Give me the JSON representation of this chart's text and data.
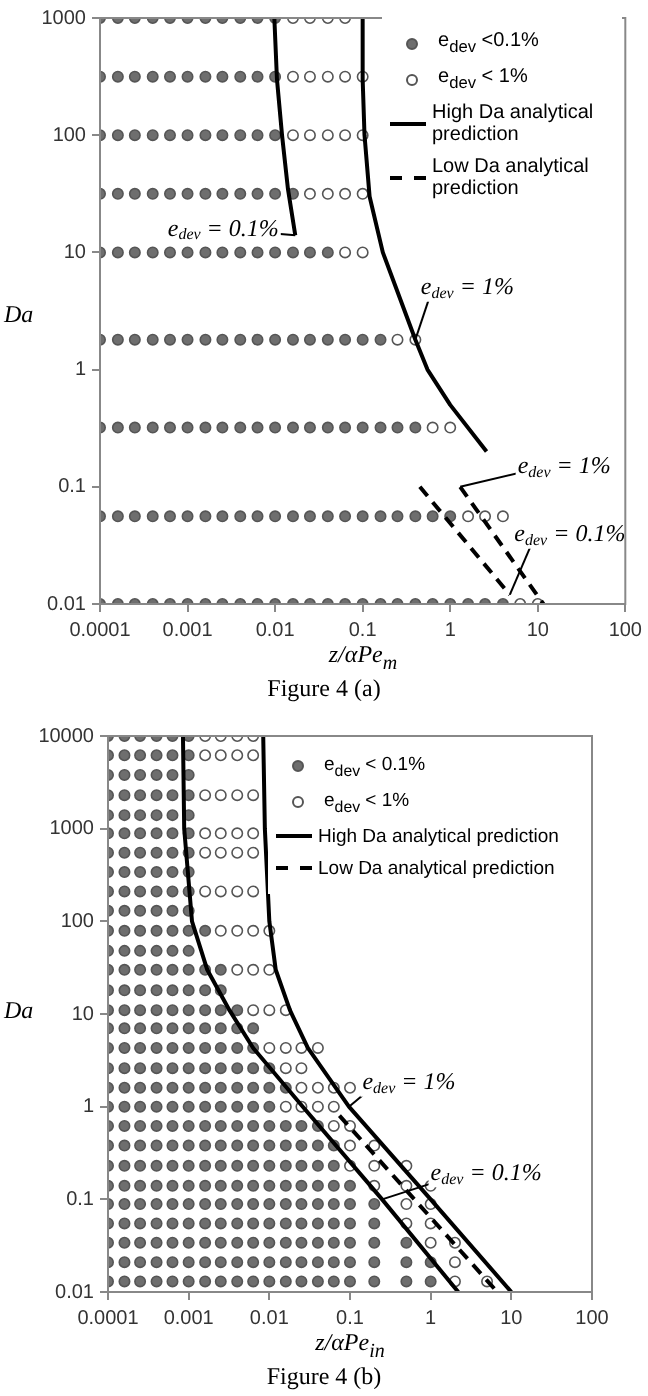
{
  "chart_data": [
    {
      "type": "scatter",
      "log": "xy",
      "grid": false,
      "legend": "top right",
      "xlabel": "z/αPe$_{m}$",
      "ylabel": "Da",
      "xlim": [
        0.0001,
        100
      ],
      "ylim": [
        0.01,
        1000
      ],
      "xticks": [
        0.0001,
        0.001,
        0.01,
        0.1,
        1,
        10,
        100
      ],
      "yticks": [
        0.01,
        0.1,
        1,
        10,
        100,
        1000
      ],
      "series": [
        {
          "marker": "circle",
          "name": "e$_{dev}$ <0.1%",
          "color": "#6e6e6e",
          "x": [
            0.0001,
            0.00016,
            0.00025,
            0.0004,
            0.00063,
            0.001,
            0.0016,
            0.0025,
            0.004,
            0.0063,
            0.01,
            0.0001,
            0.00016,
            0.00025,
            0.0004,
            0.00063,
            0.001,
            0.0016,
            0.0025,
            0.004,
            0.0063,
            0.01,
            0.0001,
            0.00016,
            0.00025,
            0.0004,
            0.00063,
            0.001,
            0.0016,
            0.0025,
            0.004,
            0.0063,
            0.01,
            0.0001,
            0.00016,
            0.00025,
            0.0004,
            0.00063,
            0.001,
            0.0016,
            0.0025,
            0.004,
            0.0063,
            0.01,
            0.016,
            0.0001,
            0.00016,
            0.00025,
            0.0004,
            0.00063,
            0.001,
            0.0016,
            0.0025,
            0.004,
            0.0063,
            0.01,
            0.016,
            0.025,
            0.04,
            0.0001,
            0.00016,
            0.00025,
            0.0004,
            0.00063,
            0.001,
            0.0016,
            0.0025,
            0.004,
            0.0063,
            0.01,
            0.016,
            0.025,
            0.04,
            0.063,
            0.1,
            0.16,
            0.0001,
            0.00016,
            0.00025,
            0.0004,
            0.00063,
            0.001,
            0.0016,
            0.0025,
            0.004,
            0.0063,
            0.01,
            0.016,
            0.025,
            0.04,
            0.063,
            0.1,
            0.16,
            0.25,
            0.4,
            0.0001,
            0.00016,
            0.00025,
            0.0004,
            0.00063,
            0.001,
            0.0016,
            0.0025,
            0.004,
            0.0063,
            0.01,
            0.016,
            0.025,
            0.04,
            0.063,
            0.1,
            0.16,
            0.25,
            0.4,
            0.63,
            1,
            0.0001,
            0.00016,
            0.00025,
            0.0004,
            0.00063,
            0.001,
            0.0016,
            0.0025,
            0.004,
            0.0063,
            0.01,
            0.016,
            0.025,
            0.04,
            0.063,
            0.1,
            0.16,
            0.25,
            0.4,
            0.63,
            1,
            1.6,
            2.5,
            4
          ],
          "values": [
            1000,
            1000,
            1000,
            1000,
            1000,
            1000,
            1000,
            1000,
            1000,
            1000,
            1000,
            316,
            316,
            316,
            316,
            316,
            316,
            316,
            316,
            316,
            316,
            316,
            100,
            100,
            100,
            100,
            100,
            100,
            100,
            100,
            100,
            100,
            100,
            31.6,
            31.6,
            31.6,
            31.6,
            31.6,
            31.6,
            31.6,
            31.6,
            31.6,
            31.6,
            31.6,
            31.6,
            10,
            10,
            10,
            10,
            10,
            10,
            10,
            10,
            10,
            10,
            10,
            10,
            10,
            10,
            1.8,
            1.8,
            1.8,
            1.8,
            1.8,
            1.8,
            1.8,
            1.8,
            1.8,
            1.8,
            1.8,
            1.8,
            1.8,
            1.8,
            1.8,
            1.8,
            1.8,
            0.32,
            0.32,
            0.32,
            0.32,
            0.32,
            0.32,
            0.32,
            0.32,
            0.32,
            0.32,
            0.32,
            0.32,
            0.32,
            0.32,
            0.32,
            0.32,
            0.32,
            0.32,
            0.32,
            0.056,
            0.056,
            0.056,
            0.056,
            0.056,
            0.056,
            0.056,
            0.056,
            0.056,
            0.056,
            0.056,
            0.056,
            0.056,
            0.056,
            0.056,
            0.056,
            0.056,
            0.056,
            0.056,
            0.056,
            0.056,
            0.01,
            0.01,
            0.01,
            0.01,
            0.01,
            0.01,
            0.01,
            0.01,
            0.01,
            0.01,
            0.01,
            0.01,
            0.01,
            0.01,
            0.01,
            0.01,
            0.01,
            0.01,
            0.01,
            0.01,
            0.01,
            0.01,
            0.01,
            0.01
          ]
        },
        {
          "marker": "circle",
          "name": "e$_{dev}$ < 1%",
          "color": "#ffffff",
          "x": [
            0.016,
            0.025,
            0.04,
            0.063,
            0.016,
            0.025,
            0.04,
            0.063,
            0.1,
            0.016,
            0.025,
            0.04,
            0.063,
            0.1,
            0.025,
            0.04,
            0.063,
            0.1,
            0.063,
            0.1,
            0.25,
            0.4,
            0.63,
            1,
            1.6,
            2.5,
            4,
            6.3,
            10
          ],
          "values": [
            1000,
            1000,
            1000,
            1000,
            316,
            316,
            316,
            316,
            316,
            100,
            100,
            100,
            100,
            100,
            31.6,
            31.6,
            31.6,
            31.6,
            10,
            10,
            1.8,
            1.8,
            0.32,
            0.32,
            0.056,
            0.056,
            0.056,
            0.01,
            0.01
          ]
        },
        {
          "type": "line",
          "marker": "none",
          "line_style": "solid",
          "name": "High Da analytical prediction",
          "color": "#000000",
          "x": [
            0.0098,
            0.0105,
            0.012,
            0.014,
            0.017
          ],
          "values": [
            1000,
            300,
            100,
            35,
            14
          ]
        },
        {
          "type": "line",
          "marker": "none",
          "line_style": "solid",
          "color": "#000000",
          "x": [
            0.1,
            0.1,
            0.105,
            0.12,
            0.17,
            0.4,
            0.55,
            1,
            2.6
          ],
          "values": [
            1000,
            300,
            100,
            30,
            10,
            1.8,
            1,
            0.5,
            0.2
          ]
        },
        {
          "type": "line",
          "marker": "none",
          "line_style": "dashed",
          "name": "Low Da analytical prediction",
          "color": "#000000",
          "x": [
            0.45,
            4.8
          ],
          "values": [
            0.1,
            0.012
          ]
        },
        {
          "type": "line",
          "marker": "none",
          "line_style": "dashed",
          "color": "#000000",
          "x": [
            1.3,
            11.6
          ],
          "values": [
            0.1,
            0.01
          ]
        }
      ],
      "annotations": [
        {
          "text": "e$_{dev}$ = 0.1%",
          "x": 0.017,
          "y": 14
        },
        {
          "text": "e$_{dev}$ = 1%",
          "x": 0.4,
          "y": 1.8
        },
        {
          "text": "e$_{dev}$ = 1%",
          "x": 1.3,
          "y": 0.1
        },
        {
          "text": "e$_{dev}$ = 0.1%",
          "x": 4.8,
          "y": 0.012
        },
        "Figure 4 (a)"
      ]
    },
    {
      "type": "scatter",
      "log": "xy",
      "grid": false,
      "legend": "top right",
      "xlabel": "z/αPe$_{in}$",
      "ylabel": "Da",
      "xlim": [
        0.0001,
        100
      ],
      "ylim": [
        0.01,
        10000
      ],
      "xticks": [
        0.0001,
        0.001,
        0.01,
        0.1,
        1,
        10,
        100
      ],
      "yticks": [
        0.01,
        0.1,
        1,
        10,
        100,
        1000,
        10000
      ],
      "series": [
        {
          "marker": "circle",
          "name": "e$_{dev}$ < 0.1%",
          "color": "#6e6e6e",
          "x": [
            0.0001,
            0.00016,
            0.00025,
            0.0004,
            0.00063,
            0.001,
            0.0001,
            0.00016,
            0.00025,
            0.0004,
            0.00063,
            0.001,
            0.0001,
            0.00016,
            0.00025,
            0.0004,
            0.00063,
            0.001,
            0.0001,
            0.00016,
            0.00025,
            0.0004,
            0.00063,
            0.001,
            0.0001,
            0.00016,
            0.00025,
            0.0004,
            0.00063,
            0.001,
            0.0001,
            0.00016,
            0.00025,
            0.0004,
            0.00063,
            0.001,
            0.0001,
            0.00016,
            0.00025,
            0.0004,
            0.00063,
            0.001,
            0.0001,
            0.00016,
            0.00025,
            0.0004,
            0.00063,
            0.001,
            0.0001,
            0.00016,
            0.00025,
            0.0004,
            0.00063,
            0.001,
            0.0001,
            0.00016,
            0.00025,
            0.0004,
            0.00063,
            0.001,
            0.0001,
            0.00016,
            0.00025,
            0.0004,
            0.00063,
            0.001,
            0.0016,
            0.0001,
            0.00016,
            0.00025,
            0.0004,
            0.00063,
            0.001,
            0.0001,
            0.00016,
            0.00025,
            0.0004,
            0.00063,
            0.001,
            0.0016,
            0.0025,
            0.0001,
            0.00016,
            0.00025,
            0.0004,
            0.00063,
            0.001,
            0.0016,
            0.0025,
            0.0001,
            0.00016,
            0.00025,
            0.0004,
            0.00063,
            0.001,
            0.0016,
            0.0025,
            0.004,
            0.0001,
            0.00016,
            0.00025,
            0.0004,
            0.00063,
            0.001,
            0.0016,
            0.0025,
            0.004,
            0.0063,
            0.0001,
            0.00016,
            0.00025,
            0.0004,
            0.00063,
            0.001,
            0.0016,
            0.0025,
            0.004,
            0.0063,
            0.0001,
            0.00016,
            0.00025,
            0.0004,
            0.00063,
            0.001,
            0.0016,
            0.0025,
            0.004,
            0.0063,
            0.01,
            0.0001,
            0.00016,
            0.00025,
            0.0004,
            0.00063,
            0.001,
            0.0016,
            0.0025,
            0.004,
            0.0063,
            0.01,
            0.016,
            0.0001,
            0.00016,
            0.00025,
            0.0004,
            0.00063,
            0.001,
            0.0016,
            0.0025,
            0.004,
            0.0063,
            0.01,
            0.0001,
            0.00016,
            0.00025,
            0.0004,
            0.00063,
            0.001,
            0.0016,
            0.0025,
            0.004,
            0.0063,
            0.01,
            0.016,
            0.025,
            0.04,
            0.0001,
            0.00016,
            0.00025,
            0.0004,
            0.00063,
            0.001,
            0.0016,
            0.0025,
            0.004,
            0.0063,
            0.01,
            0.016,
            0.025,
            0.04,
            0.063,
            0.0001,
            0.00016,
            0.00025,
            0.0004,
            0.00063,
            0.001,
            0.0016,
            0.0025,
            0.004,
            0.0063,
            0.01,
            0.016,
            0.025,
            0.04,
            0.063,
            0.0001,
            0.00016,
            0.00025,
            0.0004,
            0.00063,
            0.001,
            0.0016,
            0.0025,
            0.004,
            0.0063,
            0.01,
            0.016,
            0.025,
            0.04,
            0.063,
            0.1,
            0.0001,
            0.00016,
            0.00025,
            0.0004,
            0.00063,
            0.001,
            0.0016,
            0.0025,
            0.004,
            0.0063,
            0.01,
            0.016,
            0.025,
            0.04,
            0.063,
            0.1,
            0.2,
            0.0001,
            0.00016,
            0.00025,
            0.0004,
            0.00063,
            0.001,
            0.0016,
            0.0025,
            0.004,
            0.0063,
            0.01,
            0.016,
            0.025,
            0.04,
            0.063,
            0.1,
            0.2,
            0.0001,
            0.00016,
            0.00025,
            0.0004,
            0.00063,
            0.001,
            0.0016,
            0.0025,
            0.004,
            0.0063,
            0.01,
            0.016,
            0.025,
            0.04,
            0.063,
            0.1,
            0.2,
            0.5,
            0.0001,
            0.00016,
            0.00025,
            0.0004,
            0.00063,
            0.001,
            0.0016,
            0.0025,
            0.004,
            0.0063,
            0.01,
            0.016,
            0.025,
            0.04,
            0.063,
            0.1,
            0.2,
            0.5,
            1,
            0.0001,
            0.00016,
            0.00025,
            0.0004,
            0.00063,
            0.001,
            0.0016,
            0.0025,
            0.004,
            0.0063,
            0.01,
            0.016,
            0.025,
            0.04,
            0.063,
            0.1,
            0.2,
            0.5,
            1
          ],
          "values": [
            10000,
            10000,
            10000,
            10000,
            10000,
            10000,
            6200,
            6200,
            6200,
            6200,
            6200,
            6200,
            3800,
            3800,
            3800,
            3800,
            3800,
            3800,
            2300,
            2300,
            2300,
            2300,
            2300,
            2300,
            1400,
            1400,
            1400,
            1400,
            1400,
            1400,
            890,
            890,
            890,
            890,
            890,
            890,
            550,
            550,
            550,
            550,
            550,
            550,
            340,
            340,
            340,
            340,
            340,
            340,
            210,
            210,
            210,
            210,
            210,
            210,
            130,
            130,
            130,
            130,
            130,
            130,
            79,
            79,
            79,
            79,
            79,
            79,
            79,
            48,
            48,
            48,
            48,
            48,
            48,
            30,
            30,
            30,
            30,
            30,
            30,
            30,
            30,
            18,
            18,
            18,
            18,
            18,
            18,
            18,
            18,
            11,
            11,
            11,
            11,
            11,
            11,
            11,
            11,
            11,
            7,
            7,
            7,
            7,
            7,
            7,
            7,
            7,
            7,
            7,
            4.3,
            4.3,
            4.3,
            4.3,
            4.3,
            4.3,
            4.3,
            4.3,
            4.3,
            4.3,
            2.6,
            2.6,
            2.6,
            2.6,
            2.6,
            2.6,
            2.6,
            2.6,
            2.6,
            2.6,
            2.6,
            1.6,
            1.6,
            1.6,
            1.6,
            1.6,
            1.6,
            1.6,
            1.6,
            1.6,
            1.6,
            1.6,
            1.6,
            1,
            1,
            1,
            1,
            1,
            1,
            1,
            1,
            1,
            1,
            1,
            0.62,
            0.62,
            0.62,
            0.62,
            0.62,
            0.62,
            0.62,
            0.62,
            0.62,
            0.62,
            0.62,
            0.62,
            0.62,
            0.62,
            0.38,
            0.38,
            0.38,
            0.38,
            0.38,
            0.38,
            0.38,
            0.38,
            0.38,
            0.38,
            0.38,
            0.38,
            0.38,
            0.38,
            0.38,
            0.23,
            0.23,
            0.23,
            0.23,
            0.23,
            0.23,
            0.23,
            0.23,
            0.23,
            0.23,
            0.23,
            0.23,
            0.23,
            0.23,
            0.23,
            0.14,
            0.14,
            0.14,
            0.14,
            0.14,
            0.14,
            0.14,
            0.14,
            0.14,
            0.14,
            0.14,
            0.14,
            0.14,
            0.14,
            0.14,
            0.14,
            0.089,
            0.089,
            0.089,
            0.089,
            0.089,
            0.089,
            0.089,
            0.089,
            0.089,
            0.089,
            0.089,
            0.089,
            0.089,
            0.089,
            0.089,
            0.089,
            0.089,
            0.055,
            0.055,
            0.055,
            0.055,
            0.055,
            0.055,
            0.055,
            0.055,
            0.055,
            0.055,
            0.055,
            0.055,
            0.055,
            0.055,
            0.055,
            0.055,
            0.055,
            0.034,
            0.034,
            0.034,
            0.034,
            0.034,
            0.034,
            0.034,
            0.034,
            0.034,
            0.034,
            0.034,
            0.034,
            0.034,
            0.034,
            0.034,
            0.034,
            0.034,
            0.034,
            0.021,
            0.021,
            0.021,
            0.021,
            0.021,
            0.021,
            0.021,
            0.021,
            0.021,
            0.021,
            0.021,
            0.021,
            0.021,
            0.021,
            0.021,
            0.021,
            0.021,
            0.021,
            0.021,
            0.013,
            0.013,
            0.013,
            0.013,
            0.013,
            0.013,
            0.013,
            0.013,
            0.013,
            0.013,
            0.013,
            0.013,
            0.013,
            0.013,
            0.013,
            0.013,
            0.013,
            0.013,
            0.013
          ]
        },
        {
          "marker": "circle",
          "name": "e$_{dev}$ < 1%",
          "color": "#ffffff",
          "x": [
            0.0016,
            0.0025,
            0.004,
            0.0063,
            0.0016,
            0.0025,
            0.004,
            0.0063,
            0.0016,
            0.0025,
            0.004,
            0.0063,
            0.0016,
            0.0025,
            0.004,
            0.0063,
            0.0016,
            0.0025,
            0.004,
            0.0063,
            0.0016,
            0.0025,
            0.004,
            0.0063,
            0.0025,
            0.004,
            0.0063,
            0.01,
            0.004,
            0.0063,
            0.01,
            0.0063,
            0.01,
            0.016,
            0.01,
            0.016,
            0.025,
            0.04,
            0.016,
            0.025,
            0.025,
            0.04,
            0.063,
            0.1,
            0.016,
            0.025,
            0.04,
            0.063,
            0.063,
            0.1,
            0.1,
            0.2,
            0.1,
            0.2,
            0.5,
            0.2,
            0.5,
            1,
            0.5,
            1,
            0.5,
            1,
            1,
            2,
            2,
            2,
            5
          ],
          "values": [
            10000,
            10000,
            10000,
            10000,
            6200,
            6200,
            6200,
            6200,
            2300,
            2300,
            2300,
            2300,
            890,
            890,
            890,
            890,
            550,
            550,
            550,
            550,
            210,
            210,
            210,
            210,
            79,
            79,
            79,
            79,
            30,
            30,
            30,
            11,
            11,
            11,
            4.3,
            4.3,
            4.3,
            4.3,
            2.6,
            2.6,
            1.6,
            1.6,
            1.6,
            1.6,
            1,
            1,
            1,
            1,
            0.62,
            0.62,
            0.38,
            0.38,
            0.23,
            0.23,
            0.23,
            0.14,
            0.14,
            0.14,
            0.089,
            0.089,
            0.055,
            0.055,
            0.034,
            0.034,
            0.021,
            0.013,
            0.013
          ]
        },
        {
          "type": "line",
          "marker": "none",
          "line_style": "solid",
          "name": "High Da analytical prediction",
          "color": "#000000",
          "x": [
            0.00085,
            0.00088,
            0.0011,
            0.0017,
            0.0032,
            0.0063,
            0.026,
            0.25,
            2.2
          ],
          "values": [
            10000,
            1000,
            100,
            30,
            11,
            4.3,
            1,
            0.1,
            0.01
          ]
        },
        {
          "type": "line",
          "marker": "none",
          "line_style": "solid",
          "color": "#000000",
          "x": [
            0.0084,
            0.0088,
            0.01,
            0.012,
            0.018,
            0.03,
            0.097,
            1,
            10
          ],
          "values": [
            10000,
            1000,
            100,
            30,
            11,
            4.3,
            1,
            0.1,
            0.01
          ]
        },
        {
          "type": "line",
          "marker": "none",
          "line_style": "dashed",
          "name": "Low Da analytical prediction",
          "color": "#000000",
          "x": [
            0.074,
            6.7
          ],
          "values": [
            0.8,
            0.01
          ]
        }
      ],
      "annotations": [
        {
          "text": "e$_{dev}$ = 1%",
          "x": 0.097,
          "y": 1
        },
        {
          "text": "e$_{dev}$ = 0.1%",
          "x": 0.25,
          "y": 0.1
        },
        "Figure 4 (b)"
      ]
    }
  ]
}
